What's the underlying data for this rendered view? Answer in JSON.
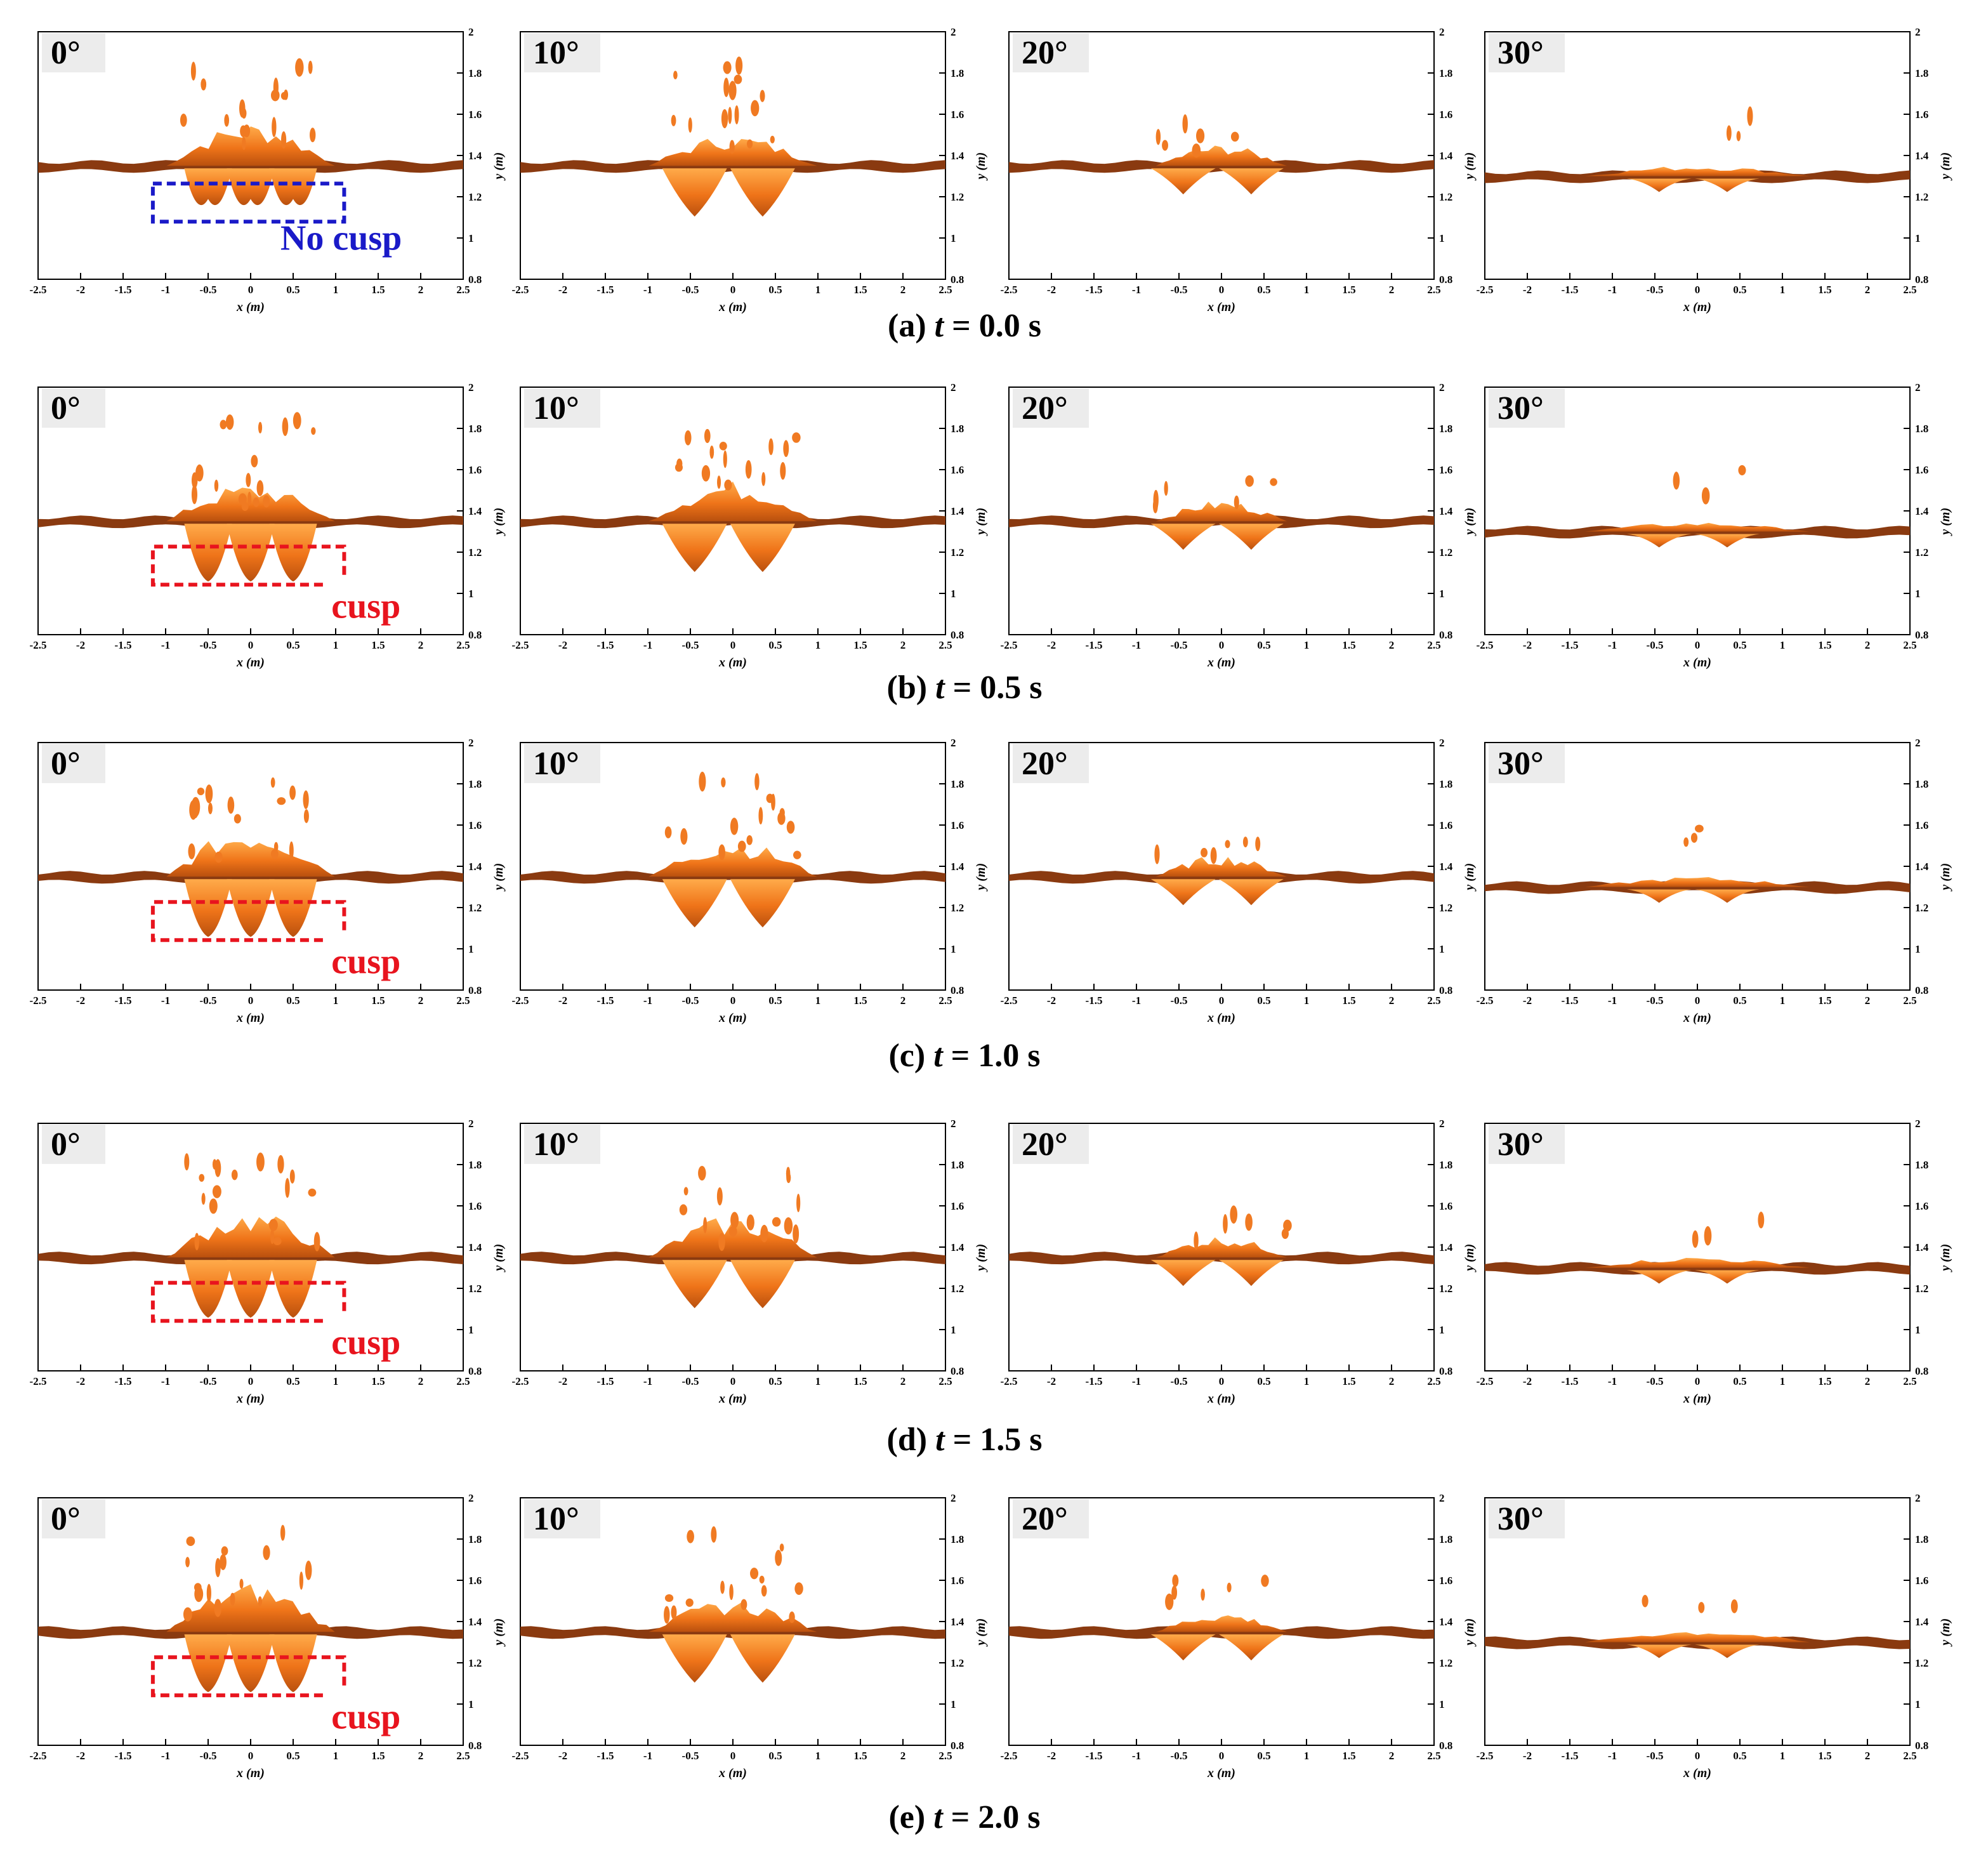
{
  "figure": {
    "angles": [
      "0°",
      "10°",
      "20°",
      "30°"
    ],
    "x_ticks": [
      "-2.5",
      "-2",
      "-1.5",
      "-1",
      "-0.5",
      "0",
      "0.5",
      "1",
      "1.5",
      "2",
      "2.5"
    ],
    "y_ticks": [
      "0.8",
      "1",
      "1.2",
      "1.4",
      "1.6",
      "1.8",
      "2"
    ],
    "x_label": "x (m)",
    "y_label": "y (m)",
    "x_range": [
      -2.5,
      2.5
    ],
    "y_range": [
      0.8,
      2.0
    ],
    "rows": [
      {
        "caption": "(a) t = 0.0 s",
        "annotation": "No cusp",
        "annotation_style": "blue"
      },
      {
        "caption": "(b) t = 0.5 s",
        "annotation": "cusp",
        "annotation_style": "red"
      },
      {
        "caption": "(c) t = 1.0 s",
        "annotation": "cusp",
        "annotation_style": "red"
      },
      {
        "caption": "(d) t = 1.5 s",
        "annotation": "cusp",
        "annotation_style": "red"
      },
      {
        "caption": "(e) t = 2.0 s",
        "annotation": "cusp",
        "annotation_style": "red"
      }
    ],
    "colors": {
      "surface_light": "#ff9a3c",
      "surface_mid": "#e86a12",
      "surface_dark": "#8a3a10",
      "annotation_blue": "#1a1ac8",
      "annotation_red": "#e8141e"
    }
  }
}
